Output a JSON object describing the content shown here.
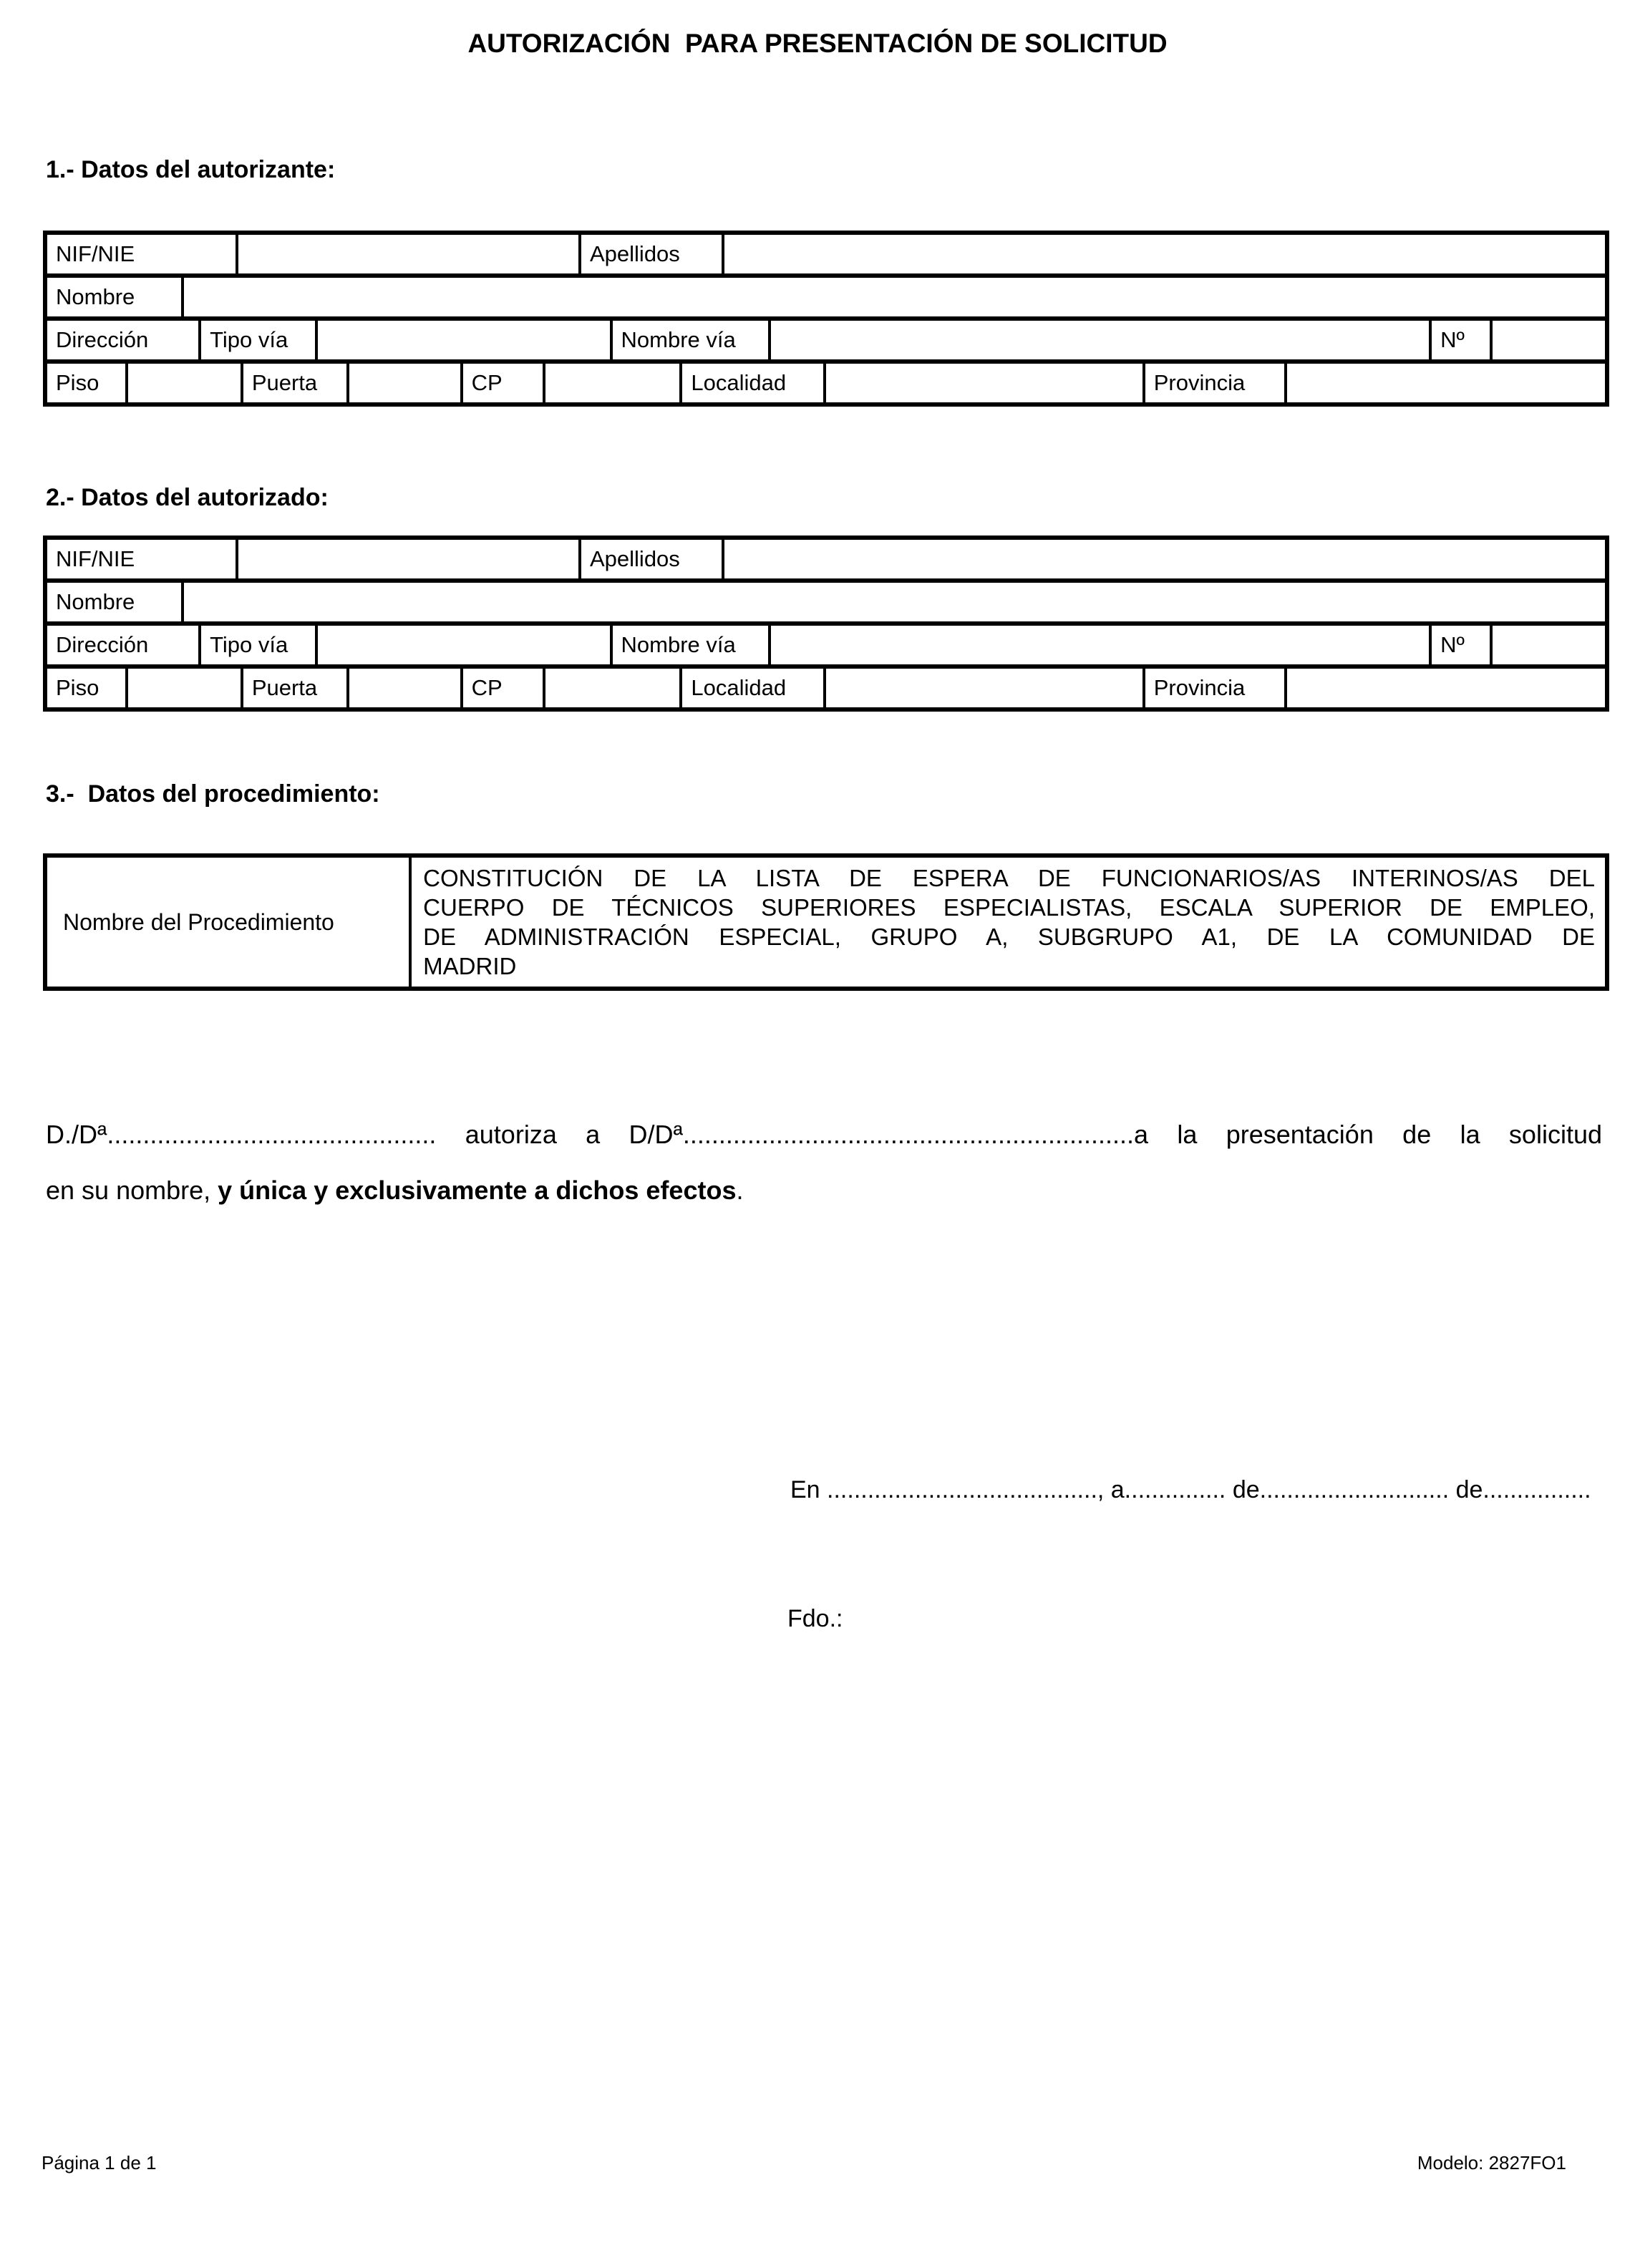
{
  "page": {
    "title": "AUTORIZACIÓN  PARA PRESENTACIÓN DE SOLICITUD",
    "footer_left": "Página 1 de 1",
    "footer_right": "Modelo: 2827FO1"
  },
  "sections": {
    "autorizante_heading": "1.- Datos del autorizante:",
    "autorizado_heading": "2.- Datos del autorizado:",
    "procedimiento_heading": "3.-  Datos del procedimiento:"
  },
  "person_fields": {
    "nif": "NIF/NIE",
    "apellidos": "Apellidos",
    "nombre": "Nombre",
    "direccion": "Dirección",
    "tipo_via": "Tipo vía",
    "nombre_via": "Nombre vía",
    "numero": "Nº",
    "piso": "Piso",
    "puerta": "Puerta",
    "cp": "CP",
    "localidad": "Localidad",
    "provincia": "Provincia"
  },
  "procedimiento": {
    "label": "Nombre del Procedimiento",
    "value": "CONSTITUCIÓN DE LA LISTA DE ESPERA DE FUNCIONARIOS/AS INTERINOS/AS DEL CUERPO DE TÉCNICOS SUPERIORES ESPECIALISTAS, ESCALA SUPERIOR DE EMPLEO, DE ADMINISTRACIÓN ESPECIAL, GRUPO A, SUBGRUPO A1, DE LA COMUNIDAD DE MADRID",
    "value_lines": [
      "CONSTITUCIÓN DE LA LISTA DE ESPERA DE FUNCIONARIOS/AS INTERINOS/AS DEL",
      "CUERPO DE TÉCNICOS SUPERIORES ESPECIALISTAS, ESCALA SUPERIOR DE EMPLEO,",
      "DE ADMINISTRACIÓN ESPECIAL, GRUPO A, SUBGRUPO A1, DE LA COMUNIDAD DE",
      "MADRID"
    ]
  },
  "authorization": {
    "line1_prefix": "D./Dª",
    "line1_dots1": "..............................................",
    "line1_middle": " autoriza a D/Dª",
    "line1_dots2": "...............................................................",
    "line1_suffix": "a la presentación de la solicitud",
    "line2_prefix": "en su nombre, ",
    "line2_bold": "y única y exclusivamente a dichos efectos",
    "line2_suffix": "."
  },
  "signature": {
    "date_line": "En ........................................, a............... de............................ de................",
    "fdo": "Fdo.:"
  }
}
